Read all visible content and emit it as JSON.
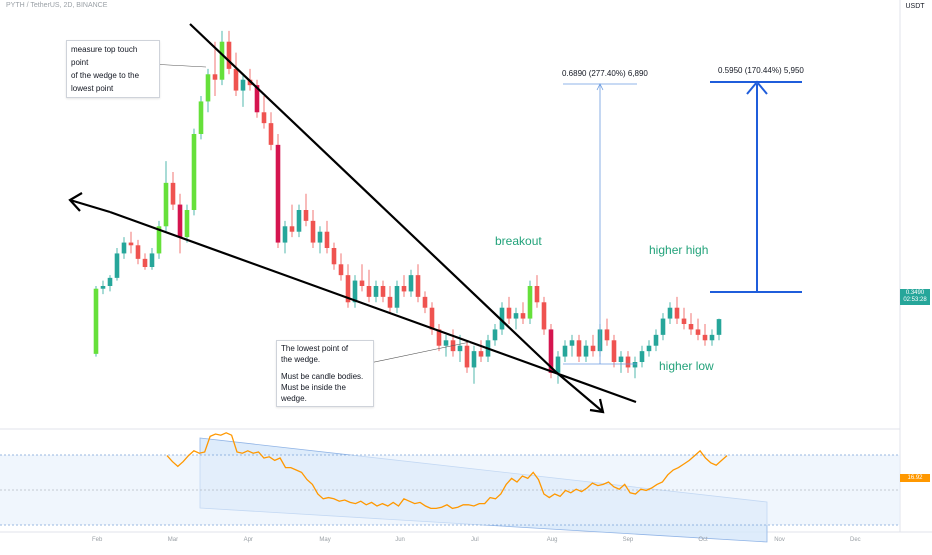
{
  "header": {
    "title": "PYTH / TetherUS, 2D, BINANCE",
    "currency": "USDT"
  },
  "chart_data": {
    "type": "candlestick",
    "symbol": "PYTH / TetherUS",
    "interval": "2D",
    "exchange": "BINANCE",
    "last_price": "0.3490",
    "countdown": "02:53:28",
    "x_tick_labels": [
      "Feb",
      "Mar",
      "Apr",
      "May",
      "Jun",
      "Jul",
      "Aug",
      "Sep",
      "Oct",
      "Nov",
      "Dec"
    ],
    "ohlc": [
      [
        0.285,
        0.41,
        0.28,
        0.405
      ],
      [
        0.405,
        0.42,
        0.395,
        0.41
      ],
      [
        0.41,
        0.43,
        0.4,
        0.425
      ],
      [
        0.425,
        0.48,
        0.42,
        0.47
      ],
      [
        0.47,
        0.5,
        0.46,
        0.49
      ],
      [
        0.49,
        0.51,
        0.47,
        0.485
      ],
      [
        0.485,
        0.495,
        0.45,
        0.46
      ],
      [
        0.46,
        0.47,
        0.44,
        0.445
      ],
      [
        0.445,
        0.48,
        0.44,
        0.47
      ],
      [
        0.47,
        0.53,
        0.46,
        0.52
      ],
      [
        0.52,
        0.64,
        0.51,
        0.6
      ],
      [
        0.6,
        0.62,
        0.55,
        0.56
      ],
      [
        0.56,
        0.58,
        0.47,
        0.5
      ],
      [
        0.5,
        0.56,
        0.49,
        0.55
      ],
      [
        0.55,
        0.7,
        0.54,
        0.69
      ],
      [
        0.69,
        0.76,
        0.68,
        0.75
      ],
      [
        0.75,
        0.81,
        0.73,
        0.8
      ],
      [
        0.8,
        0.86,
        0.76,
        0.79
      ],
      [
        0.79,
        0.88,
        0.78,
        0.86
      ],
      [
        0.86,
        0.88,
        0.8,
        0.81
      ],
      [
        0.81,
        0.84,
        0.76,
        0.77
      ],
      [
        0.77,
        0.8,
        0.74,
        0.79
      ],
      [
        0.79,
        0.81,
        0.77,
        0.78
      ],
      [
        0.78,
        0.79,
        0.72,
        0.73
      ],
      [
        0.73,
        0.76,
        0.7,
        0.71
      ],
      [
        0.71,
        0.73,
        0.66,
        0.67
      ],
      [
        0.67,
        0.69,
        0.48,
        0.49
      ],
      [
        0.49,
        0.53,
        0.47,
        0.52
      ],
      [
        0.52,
        0.56,
        0.5,
        0.51
      ],
      [
        0.51,
        0.56,
        0.5,
        0.55
      ],
      [
        0.55,
        0.58,
        0.52,
        0.53
      ],
      [
        0.53,
        0.55,
        0.48,
        0.49
      ],
      [
        0.49,
        0.52,
        0.47,
        0.51
      ],
      [
        0.51,
        0.53,
        0.47,
        0.48
      ],
      [
        0.48,
        0.49,
        0.44,
        0.45
      ],
      [
        0.45,
        0.47,
        0.42,
        0.43
      ],
      [
        0.43,
        0.45,
        0.37,
        0.38
      ],
      [
        0.38,
        0.43,
        0.37,
        0.42
      ],
      [
        0.42,
        0.45,
        0.4,
        0.41
      ],
      [
        0.41,
        0.44,
        0.38,
        0.39
      ],
      [
        0.39,
        0.42,
        0.38,
        0.41
      ],
      [
        0.41,
        0.42,
        0.38,
        0.39
      ],
      [
        0.39,
        0.41,
        0.36,
        0.37
      ],
      [
        0.37,
        0.42,
        0.36,
        0.41
      ],
      [
        0.41,
        0.43,
        0.39,
        0.4
      ],
      [
        0.4,
        0.44,
        0.39,
        0.43
      ],
      [
        0.43,
        0.45,
        0.38,
        0.39
      ],
      [
        0.39,
        0.4,
        0.36,
        0.37
      ],
      [
        0.37,
        0.38,
        0.32,
        0.33
      ],
      [
        0.33,
        0.34,
        0.29,
        0.3
      ],
      [
        0.3,
        0.32,
        0.28,
        0.31
      ],
      [
        0.31,
        0.33,
        0.28,
        0.29
      ],
      [
        0.29,
        0.32,
        0.27,
        0.3
      ],
      [
        0.3,
        0.31,
        0.25,
        0.26
      ],
      [
        0.26,
        0.3,
        0.23,
        0.29
      ],
      [
        0.29,
        0.31,
        0.27,
        0.28
      ],
      [
        0.28,
        0.32,
        0.27,
        0.31
      ],
      [
        0.31,
        0.34,
        0.3,
        0.33
      ],
      [
        0.33,
        0.38,
        0.32,
        0.37
      ],
      [
        0.37,
        0.39,
        0.34,
        0.35
      ],
      [
        0.35,
        0.37,
        0.33,
        0.36
      ],
      [
        0.36,
        0.38,
        0.34,
        0.35
      ],
      [
        0.35,
        0.42,
        0.34,
        0.41
      ],
      [
        0.41,
        0.43,
        0.37,
        0.38
      ],
      [
        0.38,
        0.39,
        0.32,
        0.33
      ],
      [
        0.33,
        0.34,
        0.24,
        0.25
      ],
      [
        0.25,
        0.29,
        0.23,
        0.28
      ],
      [
        0.28,
        0.31,
        0.27,
        0.3
      ],
      [
        0.3,
        0.32,
        0.28,
        0.31
      ],
      [
        0.31,
        0.32,
        0.27,
        0.28
      ],
      [
        0.28,
        0.31,
        0.27,
        0.3
      ],
      [
        0.3,
        0.32,
        0.28,
        0.29
      ],
      [
        0.29,
        0.34,
        0.28,
        0.33
      ],
      [
        0.33,
        0.35,
        0.3,
        0.31
      ],
      [
        0.31,
        0.32,
        0.26,
        0.27
      ],
      [
        0.27,
        0.29,
        0.25,
        0.28
      ],
      [
        0.28,
        0.29,
        0.25,
        0.26
      ],
      [
        0.26,
        0.28,
        0.24,
        0.27
      ],
      [
        0.27,
        0.3,
        0.26,
        0.29
      ],
      [
        0.29,
        0.31,
        0.28,
        0.3
      ],
      [
        0.3,
        0.33,
        0.29,
        0.32
      ],
      [
        0.32,
        0.36,
        0.31,
        0.35
      ],
      [
        0.35,
        0.38,
        0.34,
        0.37
      ],
      [
        0.37,
        0.39,
        0.34,
        0.35
      ],
      [
        0.35,
        0.37,
        0.33,
        0.34
      ],
      [
        0.34,
        0.36,
        0.32,
        0.33
      ],
      [
        0.33,
        0.35,
        0.31,
        0.32
      ],
      [
        0.32,
        0.34,
        0.3,
        0.31
      ],
      [
        0.31,
        0.33,
        0.3,
        0.32
      ],
      [
        0.32,
        0.35,
        0.31,
        0.349
      ]
    ],
    "rsi": [
      62,
      57,
      53,
      57,
      62,
      66,
      64,
      65,
      78,
      80,
      79,
      81,
      79,
      65,
      64,
      66,
      64,
      65,
      60,
      61,
      58,
      60,
      52,
      52,
      50,
      48,
      42,
      38,
      30,
      26,
      27,
      26,
      24,
      25,
      23,
      22,
      24,
      21,
      23,
      20,
      22,
      20,
      23,
      20,
      26,
      24,
      22,
      23,
      20,
      18,
      18,
      19,
      21,
      18,
      19,
      21,
      21,
      20,
      22,
      22,
      27,
      26,
      30,
      38,
      43,
      40,
      45,
      43,
      48,
      42,
      30,
      27,
      30,
      28,
      33,
      31,
      34,
      32,
      35,
      39,
      37,
      38,
      40,
      36,
      34,
      38,
      31,
      30,
      34,
      33,
      35,
      38,
      40,
      46,
      50,
      52,
      55,
      58,
      62,
      66,
      60,
      56,
      54,
      58,
      62
    ]
  },
  "annotations": {
    "top_touch_note": [
      "measure top touch point",
      "of the wedge to the",
      "lowest point"
    ],
    "lowest_note": [
      "The lowest point of",
      "the wedge.",
      "Must be candle bodies.",
      "Must be inside the wedge."
    ],
    "breakout": "breakout",
    "higher_high": "higher high",
    "higher_low": "higher low",
    "measure_1": "0.6890 (277.40%) 6,890",
    "measure_2": "0.5950 (170.44%) 5,950",
    "rsi_value": "16.92"
  },
  "colors": {
    "up": "#26a69a",
    "down": "#ef5350",
    "up_bright": "#66e03a",
    "down_dark": "#d5154f",
    "rsi_line": "#ff9800",
    "channel_fill": "#d6e7fa",
    "measure_blue": "#1f5ddb",
    "text_green": "#22a27a"
  }
}
